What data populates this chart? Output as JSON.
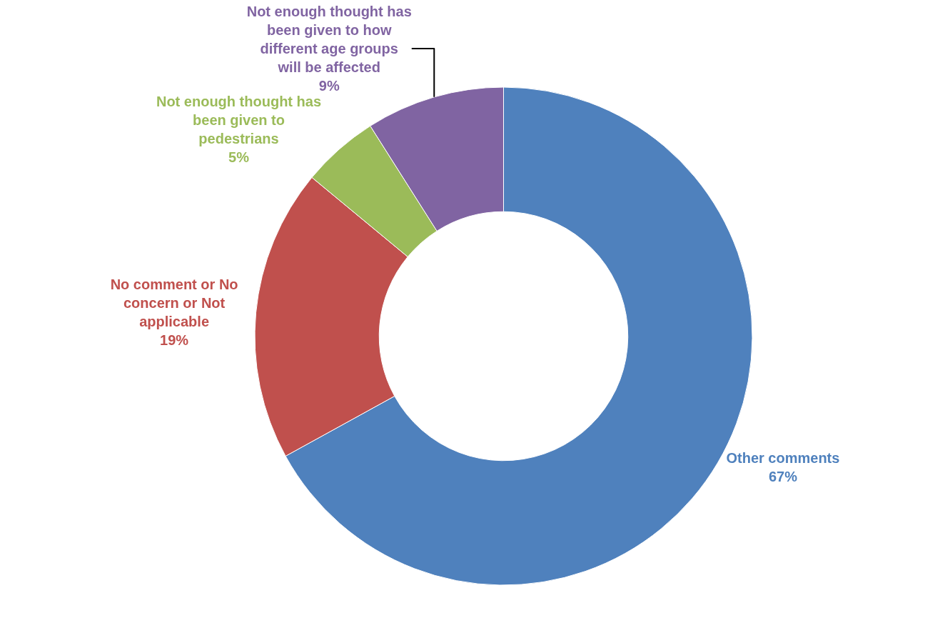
{
  "chart_data": {
    "type": "donut",
    "categories": [
      "Other comments",
      "No comment or No concern or Not applicable",
      "Not enough thought has been given to pedestrians",
      "Not enough thought has been given to how different age groups will be affected"
    ],
    "values": [
      67,
      19,
      5,
      9
    ],
    "colors": [
      "#4f81bd",
      "#c0504d",
      "#9bbb59",
      "#8064a2"
    ],
    "value_labels": [
      "67%",
      "19%",
      "5%",
      "9%"
    ],
    "legend": false
  }
}
